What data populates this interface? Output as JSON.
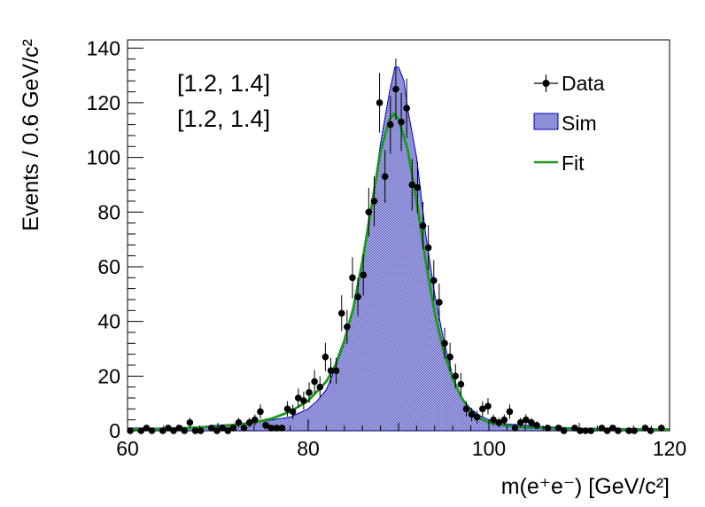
{
  "chart_data": {
    "type": "scatter",
    "title": "",
    "xlabel": "m(e⁺e⁻) [GeV/c²]",
    "ylabel": "Events / 0.6 GeV/c²",
    "xlim": [
      60,
      120
    ],
    "ylim": [
      0,
      143
    ],
    "x_ticks": [
      "60",
      "80",
      "100",
      "120"
    ],
    "y_ticks": [
      "0",
      "20",
      "40",
      "60",
      "80",
      "100",
      "120",
      "140"
    ],
    "annotations": [
      "[1.2, 1.4]",
      "[1.2, 1.4]"
    ],
    "legend": {
      "placement": "top-right",
      "entries": [
        {
          "label": "Data",
          "style": "marker-errorbar"
        },
        {
          "label": "Sim",
          "style": "hatched-fill"
        },
        {
          "label": "Fit",
          "style": "line"
        }
      ]
    },
    "colors": {
      "data": "#000000",
      "sim_line": "#0000cc",
      "sim_fill": "#8c8cd9",
      "fit": "#1a9a1a"
    },
    "series": [
      {
        "name": "Data",
        "points": [
          [
            60.3,
            0
          ],
          [
            61.5,
            0
          ],
          [
            62.1,
            1
          ],
          [
            62.7,
            0
          ],
          [
            63.9,
            0
          ],
          [
            64.5,
            1
          ],
          [
            65.1,
            0
          ],
          [
            65.7,
            1
          ],
          [
            66.3,
            0
          ],
          [
            66.9,
            3
          ],
          [
            67.5,
            0
          ],
          [
            68.1,
            0
          ],
          [
            69.3,
            1
          ],
          [
            69.9,
            0
          ],
          [
            70.5,
            1
          ],
          [
            71.1,
            0
          ],
          [
            71.7,
            1
          ],
          [
            72.3,
            3
          ],
          [
            72.9,
            1
          ],
          [
            73.5,
            3
          ],
          [
            74.1,
            4
          ],
          [
            74.7,
            7
          ],
          [
            75.3,
            2
          ],
          [
            75.9,
            1
          ],
          [
            76.5,
            1
          ],
          [
            77.1,
            1
          ],
          [
            77.7,
            8
          ],
          [
            78.3,
            7
          ],
          [
            78.9,
            12
          ],
          [
            79.5,
            11
          ],
          [
            80.1,
            14
          ],
          [
            80.7,
            18
          ],
          [
            81.3,
            16
          ],
          [
            81.9,
            27
          ],
          [
            82.5,
            22
          ],
          [
            83.1,
            22
          ],
          [
            83.7,
            43
          ],
          [
            84.3,
            38
          ],
          [
            84.9,
            56
          ],
          [
            85.5,
            49
          ],
          [
            86.1,
            57
          ],
          [
            86.7,
            80
          ],
          [
            87.3,
            84
          ],
          [
            87.9,
            120
          ],
          [
            88.5,
            93
          ],
          [
            89.1,
            112
          ],
          [
            89.7,
            125
          ],
          [
            90.3,
            113
          ],
          [
            90.9,
            118
          ],
          [
            91.5,
            90
          ],
          [
            92.1,
            89
          ],
          [
            92.7,
            75
          ],
          [
            93.3,
            67
          ],
          [
            93.9,
            55
          ],
          [
            94.5,
            47
          ],
          [
            95.1,
            32
          ],
          [
            95.7,
            27
          ],
          [
            96.3,
            20
          ],
          [
            96.9,
            17
          ],
          [
            97.5,
            8
          ],
          [
            98.1,
            6
          ],
          [
            98.7,
            5
          ],
          [
            99.3,
            8
          ],
          [
            99.9,
            9
          ],
          [
            100.5,
            4
          ],
          [
            101.1,
            3
          ],
          [
            101.7,
            4
          ],
          [
            102.3,
            7
          ],
          [
            102.9,
            1
          ],
          [
            103.5,
            3
          ],
          [
            104.1,
            4
          ],
          [
            104.7,
            3
          ],
          [
            105.3,
            2
          ],
          [
            106.5,
            1
          ],
          [
            107.7,
            1
          ],
          [
            108.3,
            0
          ],
          [
            109.5,
            1
          ],
          [
            110.1,
            0
          ],
          [
            110.7,
            0
          ],
          [
            111.3,
            0
          ],
          [
            112.5,
            1
          ],
          [
            113.1,
            0
          ],
          [
            113.7,
            1
          ],
          [
            114.3,
            0
          ],
          [
            115.5,
            0
          ],
          [
            116.1,
            0
          ],
          [
            117.3,
            1
          ],
          [
            117.9,
            0
          ],
          [
            119.1,
            1
          ]
        ]
      },
      {
        "name": "Sim",
        "points": [
          [
            60,
            1
          ],
          [
            62,
            1
          ],
          [
            64,
            1
          ],
          [
            66,
            1.2
          ],
          [
            68,
            1.5
          ],
          [
            70,
            2
          ],
          [
            72,
            2.5
          ],
          [
            74,
            3
          ],
          [
            76,
            4
          ],
          [
            78,
            5
          ],
          [
            80,
            8
          ],
          [
            81,
            11
          ],
          [
            82,
            15
          ],
          [
            83,
            23
          ],
          [
            84,
            32
          ],
          [
            85,
            45
          ],
          [
            86,
            62
          ],
          [
            87,
            82
          ],
          [
            88,
            105
          ],
          [
            89,
            124
          ],
          [
            89.6,
            133
          ],
          [
            90,
            133
          ],
          [
            90.6,
            128
          ],
          [
            91,
            118
          ],
          [
            92,
            100
          ],
          [
            93,
            72
          ],
          [
            94,
            50
          ],
          [
            95,
            33
          ],
          [
            96,
            20
          ],
          [
            97,
            12
          ],
          [
            98,
            8
          ],
          [
            99,
            5.5
          ],
          [
            100,
            4
          ],
          [
            102,
            2.5
          ],
          [
            104,
            2
          ],
          [
            106,
            1.5
          ],
          [
            110,
            1
          ],
          [
            115,
            0.8
          ],
          [
            120,
            0.6
          ]
        ]
      },
      {
        "name": "Fit",
        "points": [
          [
            60,
            0.5
          ],
          [
            65,
            0.8
          ],
          [
            70,
            1.5
          ],
          [
            74,
            3
          ],
          [
            76,
            4.5
          ],
          [
            78,
            7
          ],
          [
            80,
            11
          ],
          [
            82,
            18
          ],
          [
            83,
            24
          ],
          [
            84,
            33
          ],
          [
            85,
            45
          ],
          [
            86,
            62
          ],
          [
            87,
            82
          ],
          [
            88,
            102
          ],
          [
            89,
            114
          ],
          [
            89.5,
            116
          ],
          [
            90,
            114
          ],
          [
            91,
            103
          ],
          [
            92,
            84
          ],
          [
            93,
            62
          ],
          [
            94,
            43
          ],
          [
            95,
            29
          ],
          [
            96,
            19
          ],
          [
            97,
            12
          ],
          [
            98,
            7
          ],
          [
            99,
            4.5
          ],
          [
            100,
            3
          ],
          [
            102,
            1.8
          ],
          [
            104,
            1.2
          ],
          [
            108,
            0.8
          ],
          [
            112,
            0.6
          ],
          [
            120,
            0.5
          ]
        ]
      }
    ]
  }
}
